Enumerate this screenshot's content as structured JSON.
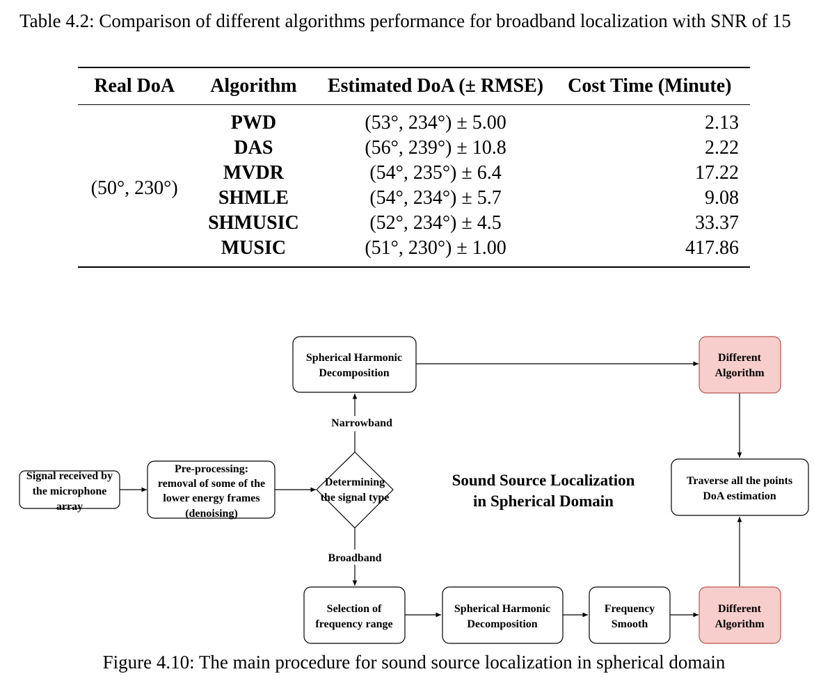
{
  "table": {
    "caption": "Table 4.2: Comparison of different algorithms performance for broadband localization with SNR of 15",
    "headers": [
      "Real DoA",
      "Algorithm",
      "Estimated DoA (± RMSE)",
      "Cost Time (Minute)"
    ],
    "real_doa": "(50°, 230°)",
    "rows": [
      {
        "algorithm": "PWD",
        "estimated": "(53°, 234°) ± 5.00",
        "cost": "2.13"
      },
      {
        "algorithm": "DAS",
        "estimated": "(56°, 239°) ± 10.8",
        "cost": "2.22"
      },
      {
        "algorithm": "MVDR",
        "estimated": "(54°, 235°) ± 6.4",
        "cost": "17.22"
      },
      {
        "algorithm": "SHMLE",
        "estimated": "(54°, 234°) ± 5.7",
        "cost": "9.08"
      },
      {
        "algorithm": "SHMUSIC",
        "estimated": "(52°, 234°) ± 4.5",
        "cost": "33.37"
      },
      {
        "algorithm": "MUSIC",
        "estimated": "(51°, 230°) ± 1.00",
        "cost": "417.86"
      }
    ]
  },
  "figure": {
    "center_title_line1": "Sound Source Localization",
    "center_title_line2": "in Spherical Domain",
    "nodes": {
      "signal": [
        "Signal received by",
        "the microphone",
        "array"
      ],
      "preprocess": [
        "Pre-processing:",
        "removal of some of the",
        "lower energy frames",
        "(denoising)"
      ],
      "decision": [
        "Determining",
        "the signal type"
      ],
      "sh_top": [
        "Spherical Harmonic",
        "Decomposition"
      ],
      "alg_top": [
        "Different",
        "Algorithm"
      ],
      "traverse": [
        "Traverse all the points",
        "DoA estimation"
      ],
      "selection": [
        "Selection of",
        "frequency range"
      ],
      "sh_bottom": [
        "Spherical Harmonic",
        "Decomposition"
      ],
      "freq_smooth": [
        "Frequency",
        "Smooth"
      ],
      "alg_bottom": [
        "Different",
        "Algorithm"
      ]
    },
    "edge_labels": {
      "narrowband": "Narrowband",
      "broadband": "Broadband"
    },
    "colors": {
      "highlight_fill": "#f8cecc",
      "highlight_stroke": "#b85450"
    },
    "caption": "Figure 4.10: The main procedure for sound source localization in spherical domain"
  }
}
